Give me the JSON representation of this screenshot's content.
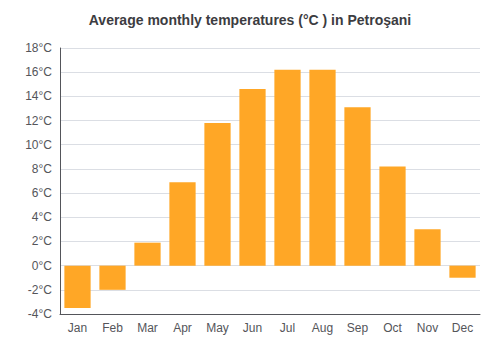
{
  "chart_data": {
    "type": "bar",
    "title": "Average monthly temperatures (°C ) in Petroşani",
    "categories": [
      "Jan",
      "Feb",
      "Mar",
      "Apr",
      "May",
      "Jun",
      "Jul",
      "Aug",
      "Sep",
      "Oct",
      "Nov",
      "Dec"
    ],
    "values": [
      -3.5,
      -2.0,
      1.9,
      6.9,
      11.8,
      14.6,
      16.2,
      16.2,
      13.1,
      8.2,
      3.0,
      -1.0
    ],
    "color": "#FFA726",
    "ylim": [
      -4,
      18
    ],
    "yticks": [
      {
        "value": -4,
        "label": "-4°C"
      },
      {
        "value": -2,
        "label": "-2°C"
      },
      {
        "value": 0,
        "label": "0°C"
      },
      {
        "value": 2,
        "label": "2°C"
      },
      {
        "value": 4,
        "label": "4°C"
      },
      {
        "value": 6,
        "label": "6°C"
      },
      {
        "value": 8,
        "label": "8°C"
      },
      {
        "value": 10,
        "label": "10°C"
      },
      {
        "value": 12,
        "label": "12°C"
      },
      {
        "value": 14,
        "label": "14°C"
      },
      {
        "value": 16,
        "label": "16°C"
      },
      {
        "value": 18,
        "label": "18°C"
      }
    ],
    "grid": true
  }
}
